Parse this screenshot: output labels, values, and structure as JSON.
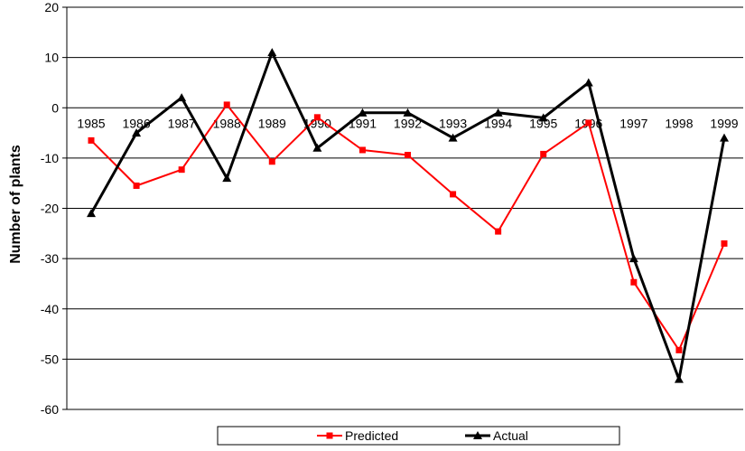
{
  "chart_data": {
    "type": "line",
    "title": "",
    "xlabel": "",
    "ylabel": "Number of plants",
    "ylim": [
      -60,
      20
    ],
    "y_ticks": [
      20,
      10,
      0,
      -10,
      -20,
      -30,
      -40,
      -50,
      -60
    ],
    "grid": true,
    "legend_position": "bottom",
    "categories": [
      "1985",
      "1986",
      "1987",
      "1988",
      "1989",
      "1990",
      "1991",
      "1992",
      "1993",
      "1994",
      "1995",
      "1996",
      "1997",
      "1998",
      "1999"
    ],
    "series": [
      {
        "name": "Predicted",
        "color": "#ff0000",
        "marker": "square",
        "values": [
          -6.5,
          -15.5,
          -12.3,
          0.6,
          -10.7,
          -1.9,
          -8.4,
          -9.4,
          -17.2,
          -24.6,
          -9.2,
          -3.0,
          -34.7,
          -48.2,
          -27.0
        ]
      },
      {
        "name": "Actual",
        "color": "#000000",
        "marker": "triangle",
        "values": [
          -21.0,
          -5.0,
          2.0,
          -14.0,
          11.0,
          -8.0,
          -1.0,
          -1.0,
          -6.0,
          -1.0,
          -2.0,
          5.0,
          -30.0,
          -54.0,
          -6.0
        ]
      }
    ]
  }
}
